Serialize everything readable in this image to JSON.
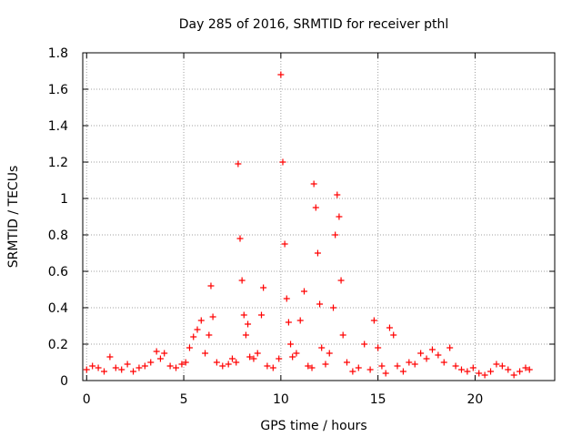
{
  "chart_data": {
    "type": "scatter",
    "title": "Day 285 of 2016, SRMTID for receiver pthl",
    "xlabel": "GPS time / hours",
    "ylabel": "SRMTID / TECUs",
    "xlim": [
      -0.2,
      24.1
    ],
    "ylim": [
      0,
      1.8
    ],
    "xticks": [
      0,
      5,
      10,
      15,
      20
    ],
    "xtick_labels": [
      "0",
      "5",
      "10",
      "15",
      "20"
    ],
    "yticks": [
      0,
      0.2,
      0.4,
      0.6,
      0.8,
      1.0,
      1.2,
      1.4,
      1.6,
      1.8
    ],
    "ytick_labels": [
      "0",
      "0.2",
      "0.4",
      "0.6",
      "0.8",
      "1",
      "1.2",
      "1.4",
      "1.6",
      "1.8"
    ],
    "grid": true,
    "marker": "+",
    "series": [
      {
        "name": "SRMTID",
        "color": "#ff0000",
        "x": [
          0.0,
          0.3,
          0.6,
          0.9,
          1.2,
          1.5,
          1.8,
          2.1,
          2.4,
          2.7,
          3.0,
          3.3,
          3.6,
          3.8,
          4.0,
          4.3,
          4.6,
          4.9,
          5.1,
          5.3,
          5.5,
          5.7,
          5.9,
          6.1,
          6.3,
          6.4,
          6.5,
          6.7,
          7.0,
          7.3,
          7.5,
          7.7,
          7.8,
          7.9,
          8.0,
          8.1,
          8.2,
          8.3,
          8.4,
          8.6,
          8.8,
          9.0,
          9.1,
          9.3,
          9.6,
          9.9,
          10.0,
          10.1,
          10.2,
          10.3,
          10.4,
          10.5,
          10.6,
          10.8,
          11.0,
          11.2,
          11.4,
          11.6,
          11.7,
          11.8,
          11.9,
          12.0,
          12.1,
          12.3,
          12.5,
          12.7,
          12.8,
          12.9,
          13.0,
          13.1,
          13.2,
          13.4,
          13.7,
          14.0,
          14.3,
          14.6,
          14.8,
          15.0,
          15.2,
          15.4,
          15.6,
          15.8,
          16.0,
          16.3,
          16.6,
          16.9,
          17.2,
          17.5,
          17.8,
          18.1,
          18.4,
          18.7,
          19.0,
          19.3,
          19.6,
          19.9,
          20.2,
          20.5,
          20.8,
          21.1,
          21.4,
          21.7,
          22.0,
          22.3,
          22.6,
          22.8
        ],
        "y": [
          0.06,
          0.08,
          0.07,
          0.05,
          0.13,
          0.07,
          0.06,
          0.09,
          0.05,
          0.07,
          0.08,
          0.1,
          0.16,
          0.12,
          0.15,
          0.08,
          0.07,
          0.09,
          0.1,
          0.18,
          0.24,
          0.28,
          0.33,
          0.15,
          0.25,
          0.52,
          0.35,
          0.1,
          0.08,
          0.09,
          0.12,
          0.1,
          1.19,
          0.78,
          0.55,
          0.36,
          0.25,
          0.31,
          0.13,
          0.12,
          0.15,
          0.36,
          0.51,
          0.08,
          0.07,
          0.12,
          1.68,
          1.2,
          0.75,
          0.45,
          0.32,
          0.2,
          0.13,
          0.15,
          0.33,
          0.49,
          0.08,
          0.07,
          1.08,
          0.95,
          0.7,
          0.42,
          0.18,
          0.09,
          0.15,
          0.4,
          0.8,
          1.02,
          0.9,
          0.55,
          0.25,
          0.1,
          0.05,
          0.07,
          0.2,
          0.06,
          0.33,
          0.18,
          0.08,
          0.04,
          0.29,
          0.25,
          0.08,
          0.05,
          0.1,
          0.09,
          0.15,
          0.12,
          0.17,
          0.14,
          0.1,
          0.18,
          0.08,
          0.06,
          0.05,
          0.07,
          0.04,
          0.03,
          0.05,
          0.09,
          0.08,
          0.06,
          0.03,
          0.05,
          0.07,
          0.06
        ]
      }
    ]
  }
}
